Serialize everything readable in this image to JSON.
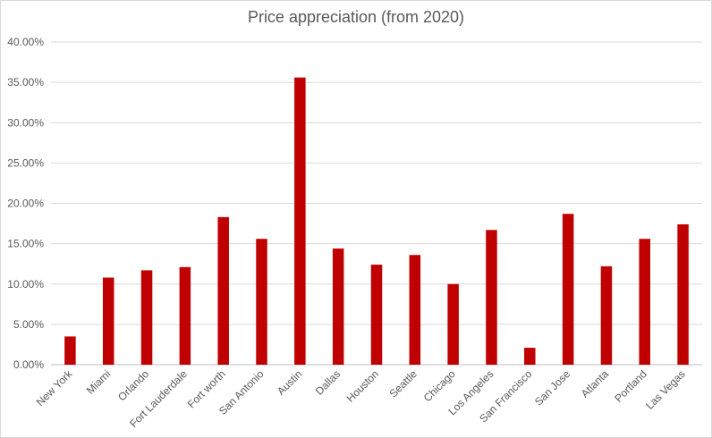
{
  "chart_data": {
    "type": "bar",
    "title": "Price appreciation (from 2020)",
    "xlabel": "",
    "ylabel": "",
    "categories": [
      "New York",
      "Miami",
      "Orlando",
      "Fort Lauderdale",
      "Fort worth",
      "San Antonio",
      "Austin",
      "Dallas",
      "Houston",
      "Seattle",
      "Chicago",
      "Los Angeles",
      "San Francisco",
      "San Jose",
      "Atlanta",
      "Portland",
      "Las Vegas"
    ],
    "values": [
      3.5,
      10.8,
      11.7,
      12.1,
      18.3,
      15.6,
      35.6,
      14.4,
      12.4,
      13.6,
      10.0,
      16.7,
      2.1,
      18.7,
      12.2,
      15.6,
      17.4
    ],
    "ylim": [
      0,
      40
    ],
    "yticks": [
      "0.00%",
      "5.00%",
      "10.00%",
      "15.00%",
      "20.00%",
      "25.00%",
      "30.00%",
      "35.00%",
      "40.00%"
    ],
    "ytick_values": [
      0,
      5,
      10,
      15,
      20,
      25,
      30,
      35,
      40
    ],
    "bar_color": "#c00000",
    "grid": true,
    "legend": "none"
  }
}
